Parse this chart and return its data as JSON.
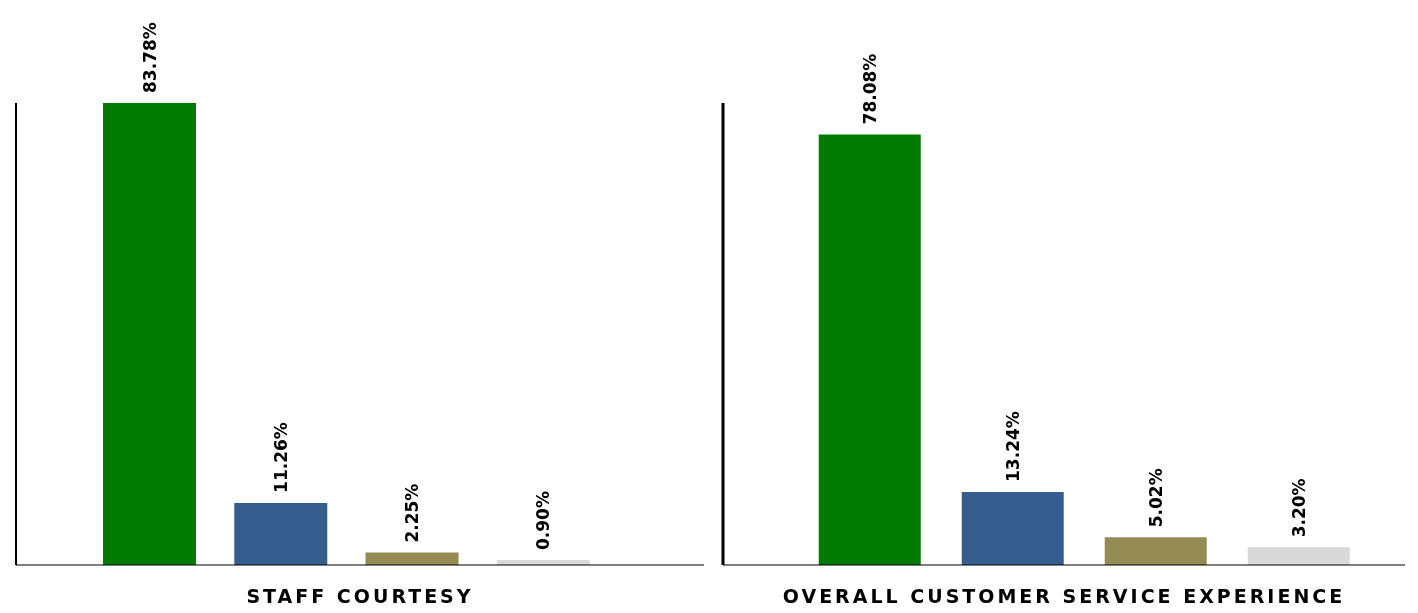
{
  "chart_data": [
    {
      "type": "bar",
      "xlabel": "STAFF COURTESY",
      "categories": [
        null,
        null,
        null,
        null
      ],
      "tick_labels": false,
      "values": [
        83.78,
        11.26,
        2.25,
        0.9
      ],
      "value_labels": [
        "83.78%",
        "11.26%",
        "2.25%",
        "0.90%"
      ],
      "colors": [
        "#007a00",
        "#355e8e",
        "#948a54",
        "#d9d9d9"
      ]
    },
    {
      "type": "bar",
      "xlabel": "OVERALL CUSTOMER SERVICE EXPERIENCE",
      "categories": [
        null,
        null,
        null,
        null
      ],
      "tick_labels": false,
      "values": [
        78.08,
        13.24,
        5.02,
        3.2
      ],
      "value_labels": [
        "78.08%",
        "13.24%",
        "5.02%",
        "3.20%"
      ],
      "colors": [
        "#007a00",
        "#355e8e",
        "#948a54",
        "#d9d9d9"
      ]
    }
  ]
}
